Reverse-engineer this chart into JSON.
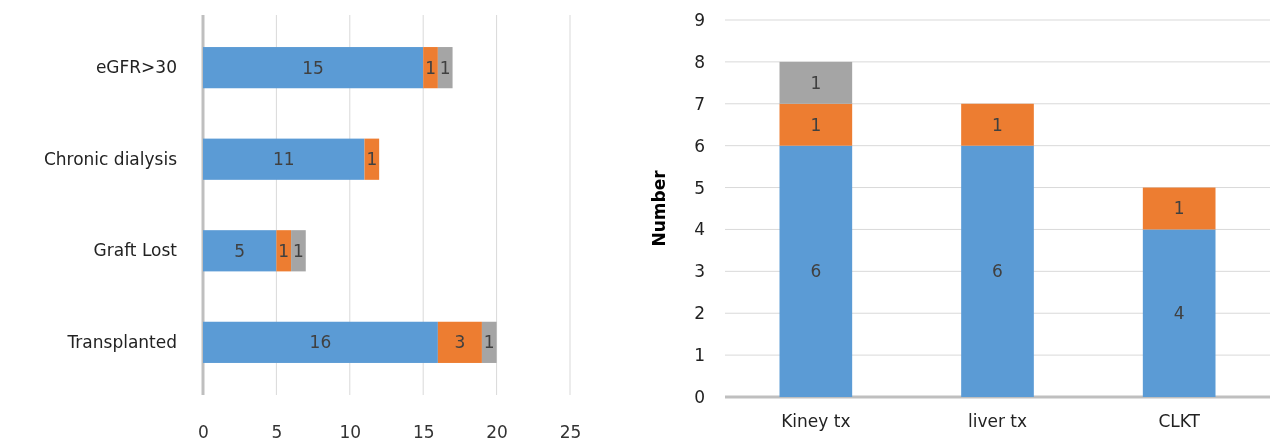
{
  "chart_data": [
    {
      "type": "bar",
      "orientation": "horizontal",
      "stacked": true,
      "categories": [
        "eGFR>30",
        "Chronic dialysis",
        "Graft Lost",
        "Transplanted"
      ],
      "series": [
        {
          "color": "#5b9bd5",
          "values": [
            15,
            11,
            5,
            16
          ]
        },
        {
          "color": "#ed7d31",
          "values": [
            1,
            1,
            1,
            3
          ]
        },
        {
          "color": "#a5a5a5",
          "values": [
            1,
            null,
            1,
            1
          ]
        }
      ],
      "xlim": [
        0,
        25
      ],
      "xticks": [
        0,
        5,
        10,
        15,
        20,
        25
      ],
      "grid": "x",
      "data_labels": true
    },
    {
      "type": "bar",
      "stacked": true,
      "categories": [
        "Kiney tx",
        "liver tx",
        "CLKT"
      ],
      "ylabel": "Number",
      "series": [
        {
          "color": "#5b9bd5",
          "values": [
            6,
            6,
            4
          ]
        },
        {
          "color": "#ed7d31",
          "values": [
            1,
            1,
            1
          ]
        },
        {
          "color": "#a5a5a5",
          "values": [
            1,
            null,
            null
          ]
        }
      ],
      "ylim": [
        0,
        9
      ],
      "yticks": [
        0,
        1,
        2,
        3,
        4,
        5,
        6,
        7,
        8,
        9
      ],
      "grid": "y",
      "data_labels": true
    }
  ]
}
